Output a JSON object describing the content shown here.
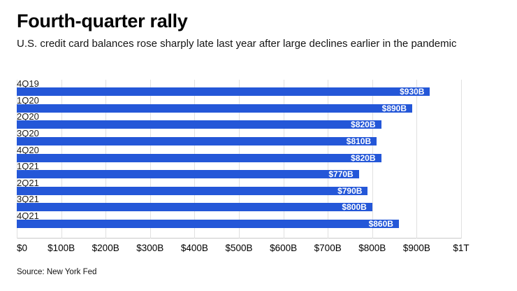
{
  "header": {
    "title": "Fourth-quarter rally",
    "subtitle": "U.S. credit card balances rose sharply late last year after large declines earlier in the pandemic"
  },
  "source": "Source: New York Fed",
  "colors": {
    "bar": "#2457d8",
    "gridline": "#e0e0e0",
    "value_label": "#ffffff"
  },
  "chart_data": {
    "type": "bar",
    "orientation": "horizontal",
    "title": "Fourth-quarter rally",
    "subtitle": "U.S. credit card balances rose sharply late last year after large declines earlier in the pandemic",
    "categories": [
      "4Q19",
      "1Q20",
      "2Q20",
      "3Q20",
      "4Q20",
      "1Q21",
      "2Q21",
      "3Q21",
      "4Q21"
    ],
    "values": [
      930,
      890,
      820,
      810,
      820,
      770,
      790,
      800,
      860
    ],
    "value_labels": [
      "$930B",
      "$890B",
      "$820B",
      "$810B",
      "$820B",
      "$770B",
      "$790B",
      "$800B",
      "$860B"
    ],
    "x_ticks": [
      "$0",
      "$100B",
      "$200B",
      "$300B",
      "$400B",
      "$500B",
      "$600B",
      "$700B",
      "$800B",
      "$900B",
      "$1T"
    ],
    "x_tick_values": [
      0,
      100,
      200,
      300,
      400,
      500,
      600,
      700,
      800,
      900,
      1000
    ],
    "xlim": [
      0,
      1000
    ],
    "xlabel": "",
    "ylabel": "",
    "grid": true,
    "legend": false,
    "source": "Source: New York Fed"
  }
}
